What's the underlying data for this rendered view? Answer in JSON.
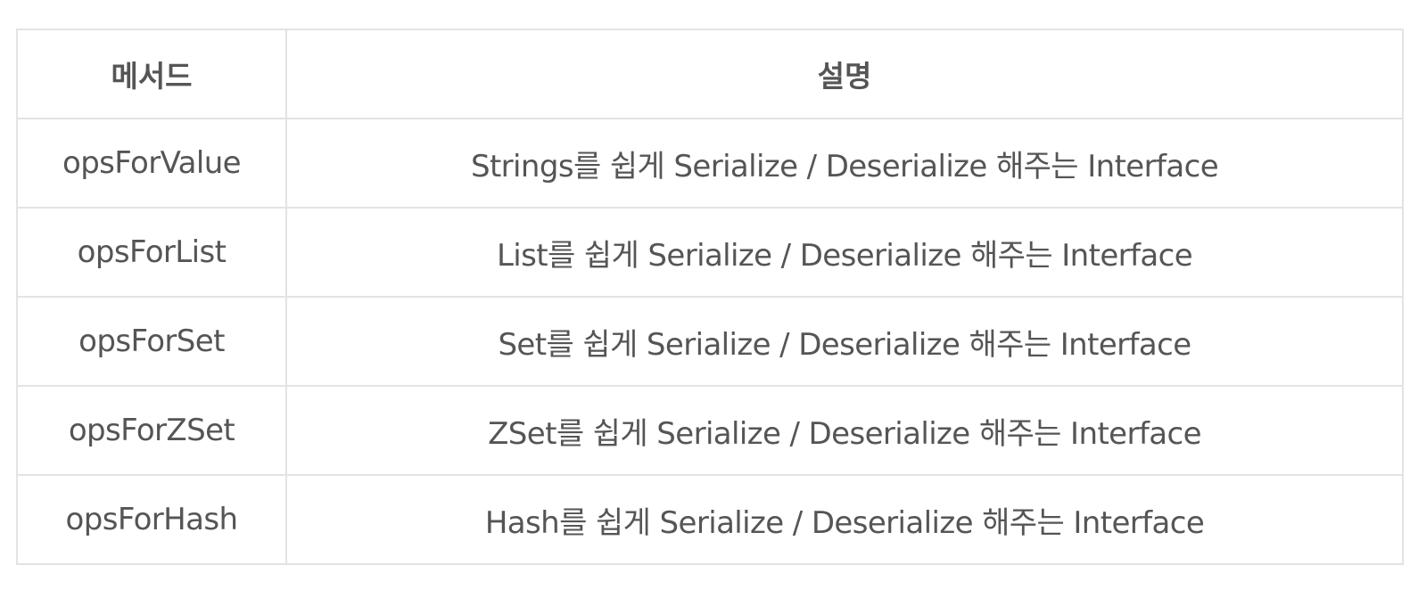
{
  "table": {
    "headers": {
      "method": "메서드",
      "description": "설명"
    },
    "rows": [
      {
        "method": "opsForValue",
        "description": "Strings를 쉽게 Serialize / Deserialize 해주는 Interface"
      },
      {
        "method": "opsForList",
        "description": "List를 쉽게 Serialize / Deserialize 해주는 Interface"
      },
      {
        "method": "opsForSet",
        "description": "Set를 쉽게 Serialize / Deserialize 해주는 Interface"
      },
      {
        "method": "opsForZSet",
        "description": "ZSet를 쉽게 Serialize / Deserialize 해주는 Interface"
      },
      {
        "method": "opsForHash",
        "description": "Hash를 쉽게 Serialize / Deserialize 해주는 Interface"
      }
    ]
  }
}
